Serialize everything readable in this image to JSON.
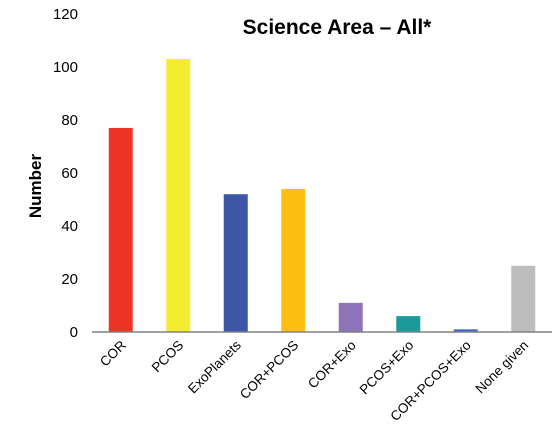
{
  "chart_data": {
    "type": "bar",
    "title": "Science Area – All*",
    "xlabel": "",
    "ylabel": "Number",
    "ylim": [
      0,
      120
    ],
    "yticks": [
      0,
      20,
      40,
      60,
      80,
      100,
      120
    ],
    "grid": false,
    "legend": "none",
    "categories": [
      "COR",
      "PCOS",
      "ExoPlanets",
      "COR+PCOS",
      "COR+Exo",
      "PCOS+Exo",
      "COR+PCOS+Exo",
      "None given"
    ],
    "values": [
      77,
      103,
      52,
      54,
      11,
      6,
      1,
      25
    ],
    "colors": [
      "#ee3524",
      "#f4ec2e",
      "#3f56a6",
      "#fdc010",
      "#8e74b8",
      "#1b9a9a",
      "#3b69c2",
      "#bdbdbd"
    ],
    "axis_color": "#808080"
  }
}
